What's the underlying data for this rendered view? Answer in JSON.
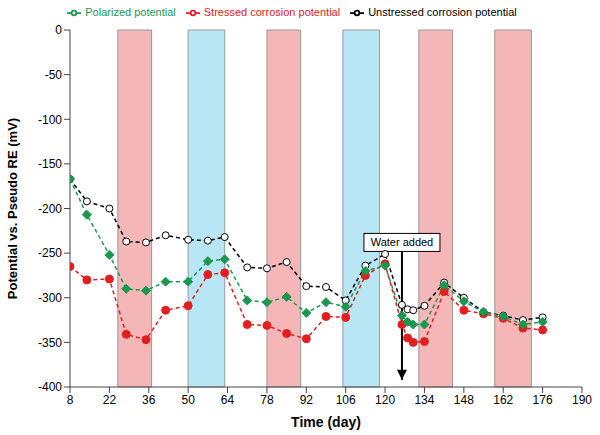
{
  "chart_data": {
    "type": "line",
    "x_label": "Time (day)",
    "y_label": "Potential vs. Pseudo RE (mV)",
    "x": [
      8,
      14,
      22,
      28,
      35,
      42,
      50,
      57,
      63,
      71,
      78,
      85,
      92,
      99,
      106,
      113,
      120,
      126,
      128,
      130,
      134,
      141,
      148,
      155,
      162,
      169,
      176
    ],
    "series": [
      {
        "name": "Stressed corrosion potential",
        "color": "#e02020",
        "marker": "circle",
        "line_style": "dashed",
        "values": [
          -265,
          -280,
          -279,
          -341,
          -347,
          -314,
          -309,
          -274,
          -272,
          -330,
          -331,
          -340,
          -346,
          -321,
          -322,
          -275,
          -262,
          -330,
          -345,
          -350,
          -349,
          -293,
          -314,
          -318,
          -323,
          -334,
          -336
        ]
      },
      {
        "name": "Unstressed corrosion potential",
        "color": "#000000",
        "marker": "open_circle",
        "line_style": "dashed",
        "values": [
          -167,
          -192,
          -200,
          -237,
          -238,
          -230,
          -235,
          -236,
          -232,
          -266,
          -267,
          -260,
          -287,
          -288,
          -303,
          -264,
          -251,
          -308,
          -313,
          -314,
          -309,
          -283,
          -300,
          -316,
          -320,
          -325,
          -322
        ]
      },
      {
        "name": "Polarized potential",
        "color": "#1a9850",
        "marker": "diamond",
        "line_style": "dashed",
        "values": [
          -167,
          -207,
          -252,
          -290,
          -292,
          -282,
          -282,
          -259,
          -257,
          -303,
          -305,
          -299,
          -317,
          -305,
          -310,
          -270,
          -264,
          -320,
          -327,
          -330,
          -330,
          -286,
          -304,
          -316,
          -321,
          -330,
          -327
        ]
      }
    ],
    "xlim": [
      8,
      190
    ],
    "xticks": [
      8,
      22,
      36,
      50,
      64,
      78,
      92,
      106,
      120,
      134,
      148,
      162,
      176,
      190
    ],
    "ylim": [
      -400,
      0
    ],
    "yticks": [
      -400,
      -350,
      -300,
      -250,
      -200,
      -150,
      -100,
      -50,
      0
    ],
    "grid": false,
    "legend": "top",
    "shaded_regions": [
      {
        "start": 25,
        "end": 37,
        "color": "#f4b6b6"
      },
      {
        "start": 50,
        "end": 63,
        "color": "#b9e6f5"
      },
      {
        "start": 78,
        "end": 90,
        "color": "#f4b6b6"
      },
      {
        "start": 105,
        "end": 118,
        "color": "#b9e6f5"
      },
      {
        "start": 132,
        "end": 144,
        "color": "#f4b6b6"
      },
      {
        "start": 159,
        "end": 172,
        "color": "#f4b6b6"
      }
    ],
    "annotations": [
      {
        "text": "Water added",
        "x": 126,
        "y": -238,
        "arrow_to": -392
      }
    ]
  }
}
